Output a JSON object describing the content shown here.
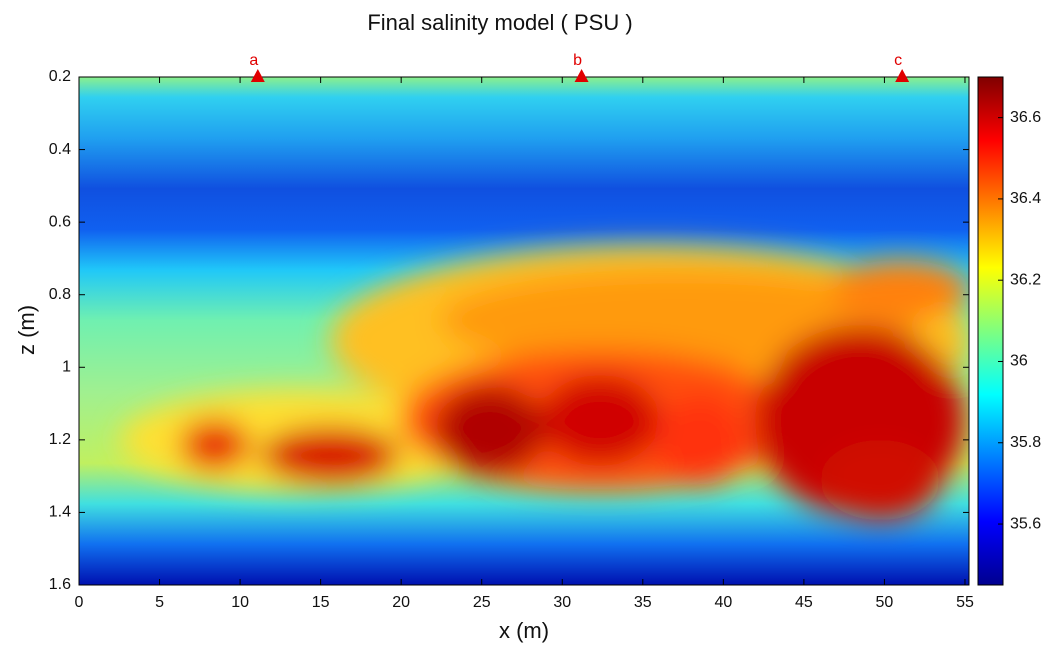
{
  "chart_data": {
    "type": "heatmap",
    "title": "Final salinity model ( PSU )",
    "x_label": "x (m)",
    "y_label": "z (m)",
    "xlim": [
      0,
      55.25
    ],
    "xticks": [
      0,
      5,
      10,
      15,
      20,
      25,
      30,
      35,
      40,
      45,
      50,
      55
    ],
    "ylim": [
      1.6,
      0.2
    ],
    "yticks": [
      0.2,
      0.4,
      0.6,
      0.8,
      1,
      1.2,
      1.4,
      1.6
    ],
    "clim": [
      35.45,
      36.7
    ],
    "cticks": [
      35.6,
      35.8,
      36,
      36.2,
      36.4,
      36.6
    ],
    "marker_color": "#e00000",
    "markers": [
      {
        "label": "a",
        "x": 11.1,
        "z": 0.2
      },
      {
        "label": "b",
        "x": 31.2,
        "z": 0.2
      },
      {
        "label": "c",
        "x": 51.1,
        "z": 0.2
      }
    ]
  }
}
